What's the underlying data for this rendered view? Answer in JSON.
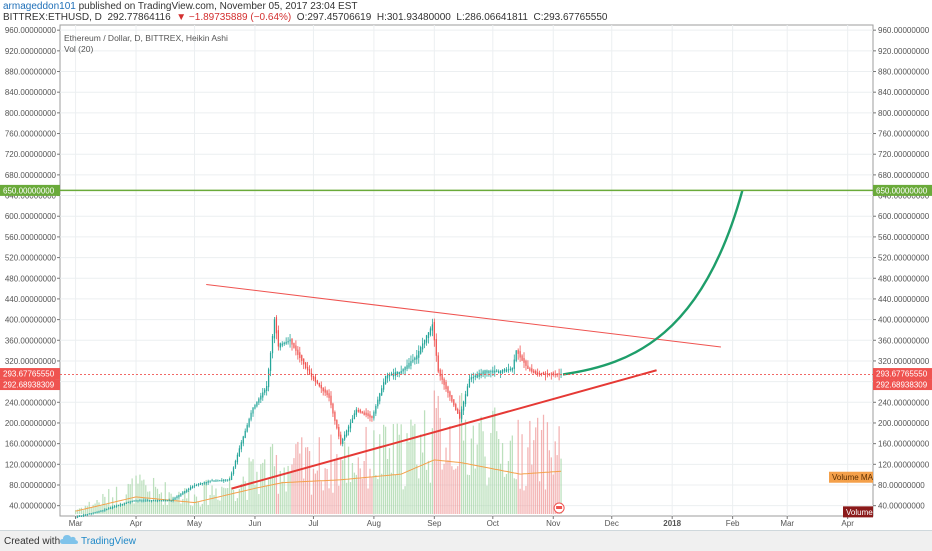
{
  "header": {
    "author": "armageddon101",
    "published": "published on TradingView.com, November 05, 2017 23:04 EST",
    "symbol": "BITTREX:ETHUSD, D",
    "last_price": "292.77864116",
    "change": "▼ −1.89735889 (−0.64%)",
    "open": "O:297.45706619",
    "high": "H:301.93480000",
    "low": "L:286.06641811",
    "close": "C:293.67765550"
  },
  "legend": {
    "series": "Ethereum / Dollar, D, BITTREX, Heikin Ashi",
    "vol": "Vol (20)"
  },
  "footer": {
    "created_with": "Created with",
    "brand": "TradingView"
  },
  "colors": {
    "bull": "#26a69a",
    "bear": "#ef5350",
    "green_level": "#6aaa3a",
    "trendline": "#ef5350",
    "projection": "#1e9e6a",
    "vol_ma": "#f4a04a",
    "last_price": "#ef5350",
    "volume_badge": "#8b1a1a"
  },
  "chart_data": {
    "type": "candlestick",
    "chart_style": "Heikin Ashi",
    "y_range": [
      20,
      970
    ],
    "y_scale": "linear",
    "grid": true,
    "y_ticks": [
      "40.00000000",
      "80.00000000",
      "120.00000000",
      "160.00000000",
      "200.00000000",
      "240.00000000",
      "280.00000000",
      "320.00000000",
      "360.00000000",
      "400.00000000",
      "440.00000000",
      "480.00000000",
      "520.00000000",
      "560.00000000",
      "600.00000000",
      "640.00000000",
      "680.00000000",
      "720.00000000",
      "760.00000000",
      "800.00000000",
      "840.00000000",
      "880.00000000",
      "920.00000000",
      "960.00000000"
    ],
    "x_ticks": [
      "Mar",
      "Apr",
      "May",
      "Jun",
      "Jul",
      "Aug",
      "Sep",
      "Oct",
      "Nov",
      "Dec",
      "2018",
      "Feb",
      "Mar",
      "Apr"
    ],
    "price_anchors": [
      {
        "date": "2017-03-01",
        "value": 17
      },
      {
        "date": "2017-03-15",
        "value": 30
      },
      {
        "date": "2017-04-01",
        "value": 50
      },
      {
        "date": "2017-04-20",
        "value": 50
      },
      {
        "date": "2017-05-01",
        "value": 78
      },
      {
        "date": "2017-05-10",
        "value": 88
      },
      {
        "date": "2017-05-20",
        "value": 90
      },
      {
        "date": "2017-05-25",
        "value": 150
      },
      {
        "date": "2017-06-01",
        "value": 230
      },
      {
        "date": "2017-06-08",
        "value": 270
      },
      {
        "date": "2017-06-12",
        "value": 400
      },
      {
        "date": "2017-06-14",
        "value": 350
      },
      {
        "date": "2017-06-20",
        "value": 360
      },
      {
        "date": "2017-06-26",
        "value": 320
      },
      {
        "date": "2017-07-01",
        "value": 290
      },
      {
        "date": "2017-07-10",
        "value": 250
      },
      {
        "date": "2017-07-16",
        "value": 160
      },
      {
        "date": "2017-07-24",
        "value": 225
      },
      {
        "date": "2017-08-01",
        "value": 210
      },
      {
        "date": "2017-08-08",
        "value": 290
      },
      {
        "date": "2017-08-16",
        "value": 300
      },
      {
        "date": "2017-08-24",
        "value": 330
      },
      {
        "date": "2017-09-01",
        "value": 390
      },
      {
        "date": "2017-09-04",
        "value": 300
      },
      {
        "date": "2017-09-15",
        "value": 210
      },
      {
        "date": "2017-09-20",
        "value": 285
      },
      {
        "date": "2017-09-28",
        "value": 300
      },
      {
        "date": "2017-10-05",
        "value": 300
      },
      {
        "date": "2017-10-12",
        "value": 305
      },
      {
        "date": "2017-10-14",
        "value": 340
      },
      {
        "date": "2017-10-20",
        "value": 305
      },
      {
        "date": "2017-10-24",
        "value": 295
      },
      {
        "date": "2017-11-05",
        "value": 294
      }
    ],
    "volume_ma_anchors": [
      {
        "date": "2017-03-01",
        "value": 0.05
      },
      {
        "date": "2017-04-01",
        "value": 0.3
      },
      {
        "date": "2017-05-01",
        "value": 0.2
      },
      {
        "date": "2017-06-01",
        "value": 0.45
      },
      {
        "date": "2017-06-15",
        "value": 0.55
      },
      {
        "date": "2017-07-15",
        "value": 0.6
      },
      {
        "date": "2017-08-15",
        "value": 0.7
      },
      {
        "date": "2017-09-01",
        "value": 0.95
      },
      {
        "date": "2017-09-15",
        "value": 0.9
      },
      {
        "date": "2017-10-15",
        "value": 0.7
      },
      {
        "date": "2017-11-05",
        "value": 0.75
      }
    ],
    "resistance_line": [
      {
        "date": "2017-05-07",
        "value": 468
      },
      {
        "date": "2018-01-26",
        "value": 347
      }
    ],
    "support_line": [
      {
        "date": "2017-05-20",
        "value": 73
      },
      {
        "date": "2017-12-24",
        "value": 302
      }
    ],
    "projection_curve": [
      {
        "date": "2017-11-06",
        "value": 294
      },
      {
        "date": "2018-02-06",
        "value": 650
      }
    ],
    "horizontal_level": {
      "value": 650,
      "label": "650.00000000"
    },
    "last_value_labels": [
      {
        "label": "293.67765550",
        "value": 293.6776555
      },
      {
        "label": "292.68938309",
        "value": 292.68938309
      }
    ],
    "annotations": [
      {
        "label": "Volume MA"
      },
      {
        "label": "Volume"
      }
    ]
  }
}
